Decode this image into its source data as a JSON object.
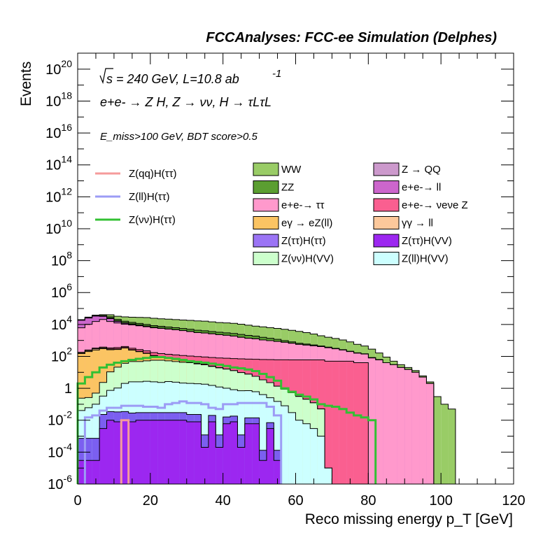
{
  "chart_data": {
    "type": "area",
    "title": "FCCAnalyses: FCC-ee Simulation (Delphes)",
    "xlabel": "Reco missing energy p_T [GeV]",
    "ylabel": "Events",
    "xlim": [
      0,
      120
    ],
    "ylim": [
      1e-06,
      1e+21
    ],
    "yscale": "log",
    "grid": false,
    "x_ticks": [
      "0",
      "20",
      "40",
      "60",
      "80",
      "100",
      "120"
    ],
    "y_ticks": [
      {
        "base": "10",
        "exp": "20",
        "value": 1e+20
      },
      {
        "base": "10",
        "exp": "18",
        "value": 1e+18
      },
      {
        "base": "10",
        "exp": "16",
        "value": 1e+16
      },
      {
        "base": "10",
        "exp": "14",
        "value": 100000000000000.0
      },
      {
        "base": "10",
        "exp": "12",
        "value": 1000000000000.0
      },
      {
        "base": "10",
        "exp": "10",
        "value": 10000000000.0
      },
      {
        "base": "10",
        "exp": "8",
        "value": 100000000.0
      },
      {
        "base": "10",
        "exp": "6",
        "value": 1000000.0
      },
      {
        "base": "10",
        "exp": "4",
        "value": 10000.0
      },
      {
        "base": "10",
        "exp": "2",
        "value": 100
      },
      {
        "base": "1",
        "exp": "",
        "value": 1
      },
      {
        "base": "10",
        "exp": "-2",
        "value": 0.01
      },
      {
        "base": "10",
        "exp": "-4",
        "value": 0.0001
      },
      {
        "base": "10",
        "exp": "-6",
        "value": 1e-06
      }
    ],
    "annotations": {
      "sqrt_s": "s = 240 GeV, L=10.8 ab",
      "lumi_exp": "-1",
      "process_line": "e+e- → Z H, Z → νν, H → τLτL",
      "cut": "E_miss>100 GeV, BDT score>0.5"
    },
    "bin_edges": [
      0,
      2,
      4,
      6,
      8,
      10,
      12,
      14,
      16,
      18,
      20,
      22,
      24,
      26,
      28,
      30,
      32,
      34,
      36,
      38,
      40,
      42,
      44,
      46,
      48,
      50,
      52,
      54,
      56,
      58,
      60,
      62,
      64,
      66,
      68,
      70,
      72,
      74,
      76,
      78,
      80,
      82,
      84,
      86,
      88,
      90,
      92,
      94,
      96,
      98,
      100,
      102,
      104
    ],
    "stacked_series": [
      {
        "name": "Z(ττ)H(VV)",
        "color": "#9c27f0",
        "values": [
          3e-05,
          3e-05,
          3e-05,
          0.003,
          0.01,
          0.008,
          0.01,
          0.008,
          0.01,
          0.01,
          0.01,
          0.01,
          0.01,
          0.01,
          0.01,
          0.008,
          0.008,
          0.0002,
          0.008,
          0.0002,
          0.006,
          0.008,
          0.0002,
          0.006,
          0.006,
          3e-05,
          0.003,
          3e-05,
          0,
          0,
          0,
          0,
          0,
          0,
          0,
          0,
          0,
          0,
          0,
          0,
          0,
          0,
          0,
          0,
          0,
          0,
          0,
          0,
          0,
          0,
          0,
          0
        ]
      },
      {
        "name": "Z(ττ)H(ττ)",
        "color": "#7b5ff0",
        "values": [
          0.0007,
          0.0007,
          0.0007,
          0.02,
          0.025,
          0.025,
          0.025,
          0.02,
          0.02,
          0.02,
          0.02,
          0.02,
          0.02,
          0.02,
          0.02,
          0.015,
          0.015,
          0.001,
          0.012,
          0.001,
          0.01,
          0.01,
          0.001,
          0.008,
          0.008,
          0.0001,
          0.004,
          0.0001,
          0,
          0,
          0,
          0,
          0,
          0,
          0,
          0,
          0,
          0,
          0,
          0,
          0,
          0,
          0,
          0,
          0,
          0,
          0,
          0,
          0,
          0,
          0,
          0
        ]
      },
      {
        "name": "Z(ll)H(VV)",
        "color": "#ccffff",
        "values": [
          0.04,
          0.06,
          0.1,
          0.3,
          0.7,
          1.0,
          2.0,
          2.5,
          2.5,
          2.7,
          2.5,
          2.3,
          2.6,
          2.4,
          2.1,
          2.0,
          1.9,
          1.8,
          1.5,
          1.2,
          1.0,
          0.8,
          0.7,
          0.7,
          0.6,
          0.4,
          0.25,
          0.15,
          0.08,
          0.03,
          0.01,
          0.006,
          0.003,
          0.001,
          1e-05,
          0,
          0,
          0,
          0,
          0,
          0,
          0,
          0,
          0,
          0,
          0,
          0,
          0,
          0,
          0,
          0,
          0
        ]
      },
      {
        "name": "Z(νν)H(VV)",
        "color": "#ccffcc",
        "values": [
          0.2,
          0.2,
          0.4,
          2,
          10,
          20,
          35,
          45,
          45,
          50,
          55,
          55,
          50,
          45,
          40,
          38,
          32,
          28,
          22,
          18,
          15,
          12,
          9,
          7,
          5,
          3,
          2,
          1.2,
          0.8,
          0.5,
          0.3,
          0.2,
          0.12,
          0.05,
          0,
          0,
          0,
          0,
          0,
          0,
          0,
          0,
          0,
          0,
          0,
          0,
          0,
          0,
          0,
          0,
          0,
          0
        ]
      },
      {
        "name": "eγ → eZ(ll)",
        "color": "#fbc463",
        "values": [
          150,
          200,
          250,
          300,
          250,
          250,
          300,
          200,
          150,
          100,
          50,
          30,
          20,
          15,
          10,
          5,
          3,
          2,
          1,
          0.5,
          0.2,
          0,
          0,
          0,
          0,
          0,
          0,
          0,
          0,
          0,
          0,
          0,
          0,
          0,
          0,
          0,
          0,
          0,
          0,
          0,
          0,
          0,
          0,
          0,
          0,
          0,
          0,
          0,
          0,
          0,
          0,
          0
        ]
      },
      {
        "name": "γγ → ll",
        "color": "#fcc89b",
        "values": [
          20,
          30,
          50,
          40,
          30,
          25,
          20,
          15,
          10,
          8,
          5,
          3,
          2,
          1,
          0.5,
          0.2,
          0,
          0,
          0,
          0,
          0,
          0,
          0,
          0,
          0,
          0,
          0,
          0,
          0,
          0,
          0,
          0,
          0,
          0,
          0,
          0,
          0,
          0,
          0,
          0,
          0,
          0,
          0,
          0,
          0,
          0,
          0,
          0,
          0,
          0,
          0,
          0
        ]
      },
      {
        "name": "e+e-→ νeνe Z",
        "color": "#fa5f90",
        "values": [
          10,
          20,
          30,
          40,
          50,
          60,
          60,
          60,
          60,
          60,
          60,
          60,
          60,
          60,
          60,
          60,
          60,
          60,
          60,
          60,
          60,
          60,
          60,
          60,
          60,
          60,
          60,
          60,
          60,
          60,
          60,
          60,
          60,
          60,
          50,
          50,
          50,
          50,
          40,
          40,
          0,
          0,
          0,
          0,
          0,
          0,
          0,
          0,
          0,
          0,
          0,
          0
        ]
      },
      {
        "name": "e+e-→ ττ",
        "color": "#ff99cc",
        "values": [
          6000,
          10000,
          15000,
          20000,
          15000,
          12000,
          10000,
          9000,
          8000,
          7000,
          6000,
          5500,
          5000,
          4500,
          4000,
          3500,
          3000,
          2800,
          2500,
          2200,
          2000,
          1800,
          1500,
          1300,
          1200,
          1000,
          900,
          800,
          700,
          600,
          500,
          450,
          400,
          350,
          300,
          250,
          200,
          150,
          120,
          100,
          80,
          60,
          40,
          30,
          20,
          15,
          10,
          5,
          2,
          0,
          0,
          0
        ]
      },
      {
        "name": "e+e-→ ll",
        "color": "#cc66cc",
        "values": [
          12000,
          15000,
          18000,
          12000,
          8000,
          3000,
          1500,
          800,
          500,
          300,
          200,
          100,
          50,
          20,
          10,
          5,
          2,
          1,
          0,
          0,
          0,
          0,
          0,
          0,
          0,
          0,
          0,
          0,
          0,
          0,
          0,
          0,
          0,
          0,
          0,
          0,
          0,
          0,
          0,
          0,
          0,
          0,
          0,
          0,
          0,
          0,
          0,
          0,
          0,
          0,
          0,
          0
        ]
      },
      {
        "name": "Z → QQ",
        "color": "#cc99cc",
        "values": [
          500,
          800,
          1000,
          1500,
          2000,
          1500,
          1000,
          800,
          600,
          400,
          300,
          200,
          150,
          100,
          80,
          60,
          40,
          30,
          20,
          15,
          10,
          8,
          6,
          4,
          3,
          2,
          1,
          0,
          0,
          0,
          0,
          0,
          0,
          0,
          0,
          0,
          0,
          0,
          0,
          0,
          0,
          0,
          0,
          0,
          0,
          0,
          0,
          0,
          0,
          0,
          0,
          0
        ]
      },
      {
        "name": "ZZ",
        "color": "#5b9e31",
        "values": [
          300,
          600,
          1000,
          2000,
          5000,
          4000,
          3000,
          2500,
          2200,
          2000,
          1800,
          1700,
          1600,
          1500,
          1400,
          1300,
          1200,
          1100,
          1000,
          950,
          900,
          850,
          800,
          700,
          600,
          500,
          400,
          300,
          200,
          150,
          100,
          80,
          60,
          40,
          30,
          20,
          15,
          10,
          8,
          6,
          5,
          3,
          0,
          0,
          0,
          0,
          0,
          0,
          0,
          0,
          0,
          0
        ]
      },
      {
        "name": "WW",
        "color": "#99cc66",
        "values": [
          1000,
          2000,
          3000,
          5000,
          10000,
          12000,
          14000,
          15000,
          16000,
          17000,
          16000,
          15000,
          14500,
          14000,
          13500,
          13000,
          12500,
          12000,
          11000,
          10000,
          9500,
          9000,
          8000,
          7000,
          6000,
          5500,
          5000,
          4500,
          4000,
          3500,
          3000,
          2500,
          2000,
          1500,
          1200,
          1000,
          800,
          600,
          400,
          300,
          200,
          100,
          50,
          20,
          10,
          5,
          3,
          1,
          0.5,
          0.3,
          0.1,
          0.05
        ]
      }
    ],
    "signal_lines": [
      {
        "name": "Z(qq)H(ττ)",
        "color": "#f59b9b",
        "values": [
          0,
          0,
          0,
          0,
          0,
          0,
          0.01,
          0,
          0,
          0,
          0,
          0,
          0,
          0,
          0,
          0,
          0,
          0,
          0,
          0,
          0,
          0,
          0,
          0,
          0,
          0,
          0,
          0,
          0,
          0,
          0,
          0,
          0,
          0,
          0,
          0,
          0,
          0,
          0,
          0,
          0,
          0,
          0,
          0,
          0,
          0,
          0,
          0,
          0,
          0,
          0,
          0
        ]
      },
      {
        "name": "Z(ll)H(ττ)",
        "color": "#9c9cf5",
        "values": [
          0,
          0.015,
          0.02,
          0.04,
          0.06,
          0.06,
          0.08,
          0.08,
          0.08,
          0.07,
          0.07,
          0.06,
          0.1,
          0.12,
          0.15,
          0.12,
          0.12,
          0.1,
          0.06,
          0.05,
          0.1,
          0.1,
          0.12,
          0.12,
          0.12,
          0.12,
          0.07,
          0.02,
          0,
          0,
          0,
          0,
          0,
          0,
          0,
          0,
          0,
          0,
          0,
          0,
          0,
          0,
          0,
          0,
          0,
          0,
          0,
          0,
          0,
          0,
          0,
          0
        ]
      },
      {
        "name": "Z(νν)H(ττ)",
        "color": "#33c033",
        "values": [
          2,
          5,
          10,
          20,
          30,
          40,
          50,
          60,
          70,
          80,
          90,
          90,
          80,
          70,
          60,
          50,
          45,
          40,
          35,
          30,
          25,
          20,
          18,
          15,
          12,
          8,
          5,
          3,
          1,
          0.6,
          0.4,
          0.3,
          0.2,
          0.1,
          0.08,
          0.07,
          0.05,
          0.03,
          0.02,
          0.015,
          0.01,
          0,
          0,
          0,
          0,
          0,
          0,
          0,
          0,
          0,
          0,
          0
        ]
      }
    ],
    "legend": {
      "lines": [
        {
          "label": "Z(qq)H(ττ)",
          "color": "#f59b9b"
        },
        {
          "label": "Z(ll)H(ττ)",
          "color": "#9c9cf5"
        },
        {
          "label": "Z(νν)H(ττ)",
          "color": "#33c033"
        }
      ],
      "boxes_col1": [
        {
          "label": "WW",
          "color": "#99cc66"
        },
        {
          "label": "ZZ",
          "color": "#5b9e31"
        },
        {
          "label": "e+e-→ ττ",
          "color": "#ff99cc"
        },
        {
          "label": "eγ → eZ(ll)",
          "color": "#fbc463"
        },
        {
          "label": "Z(ττ)H(ττ)",
          "color": "#9b74f5"
        },
        {
          "label": "Z(νν)H(VV)",
          "color": "#ccffcc"
        }
      ],
      "boxes_col2": [
        {
          "label": "Z → QQ",
          "color": "#cc99cc"
        },
        {
          "label": "e+e-→ ll",
          "color": "#cc66cc"
        },
        {
          "label": "e+e-→ νeνe Z",
          "color": "#fa5f90"
        },
        {
          "label": "γγ → ll",
          "color": "#fcc89b"
        },
        {
          "label": "Z(ττ)H(VV)",
          "color": "#9c27f0"
        },
        {
          "label": "Z(ll)H(VV)",
          "color": "#ccffff"
        }
      ]
    }
  }
}
